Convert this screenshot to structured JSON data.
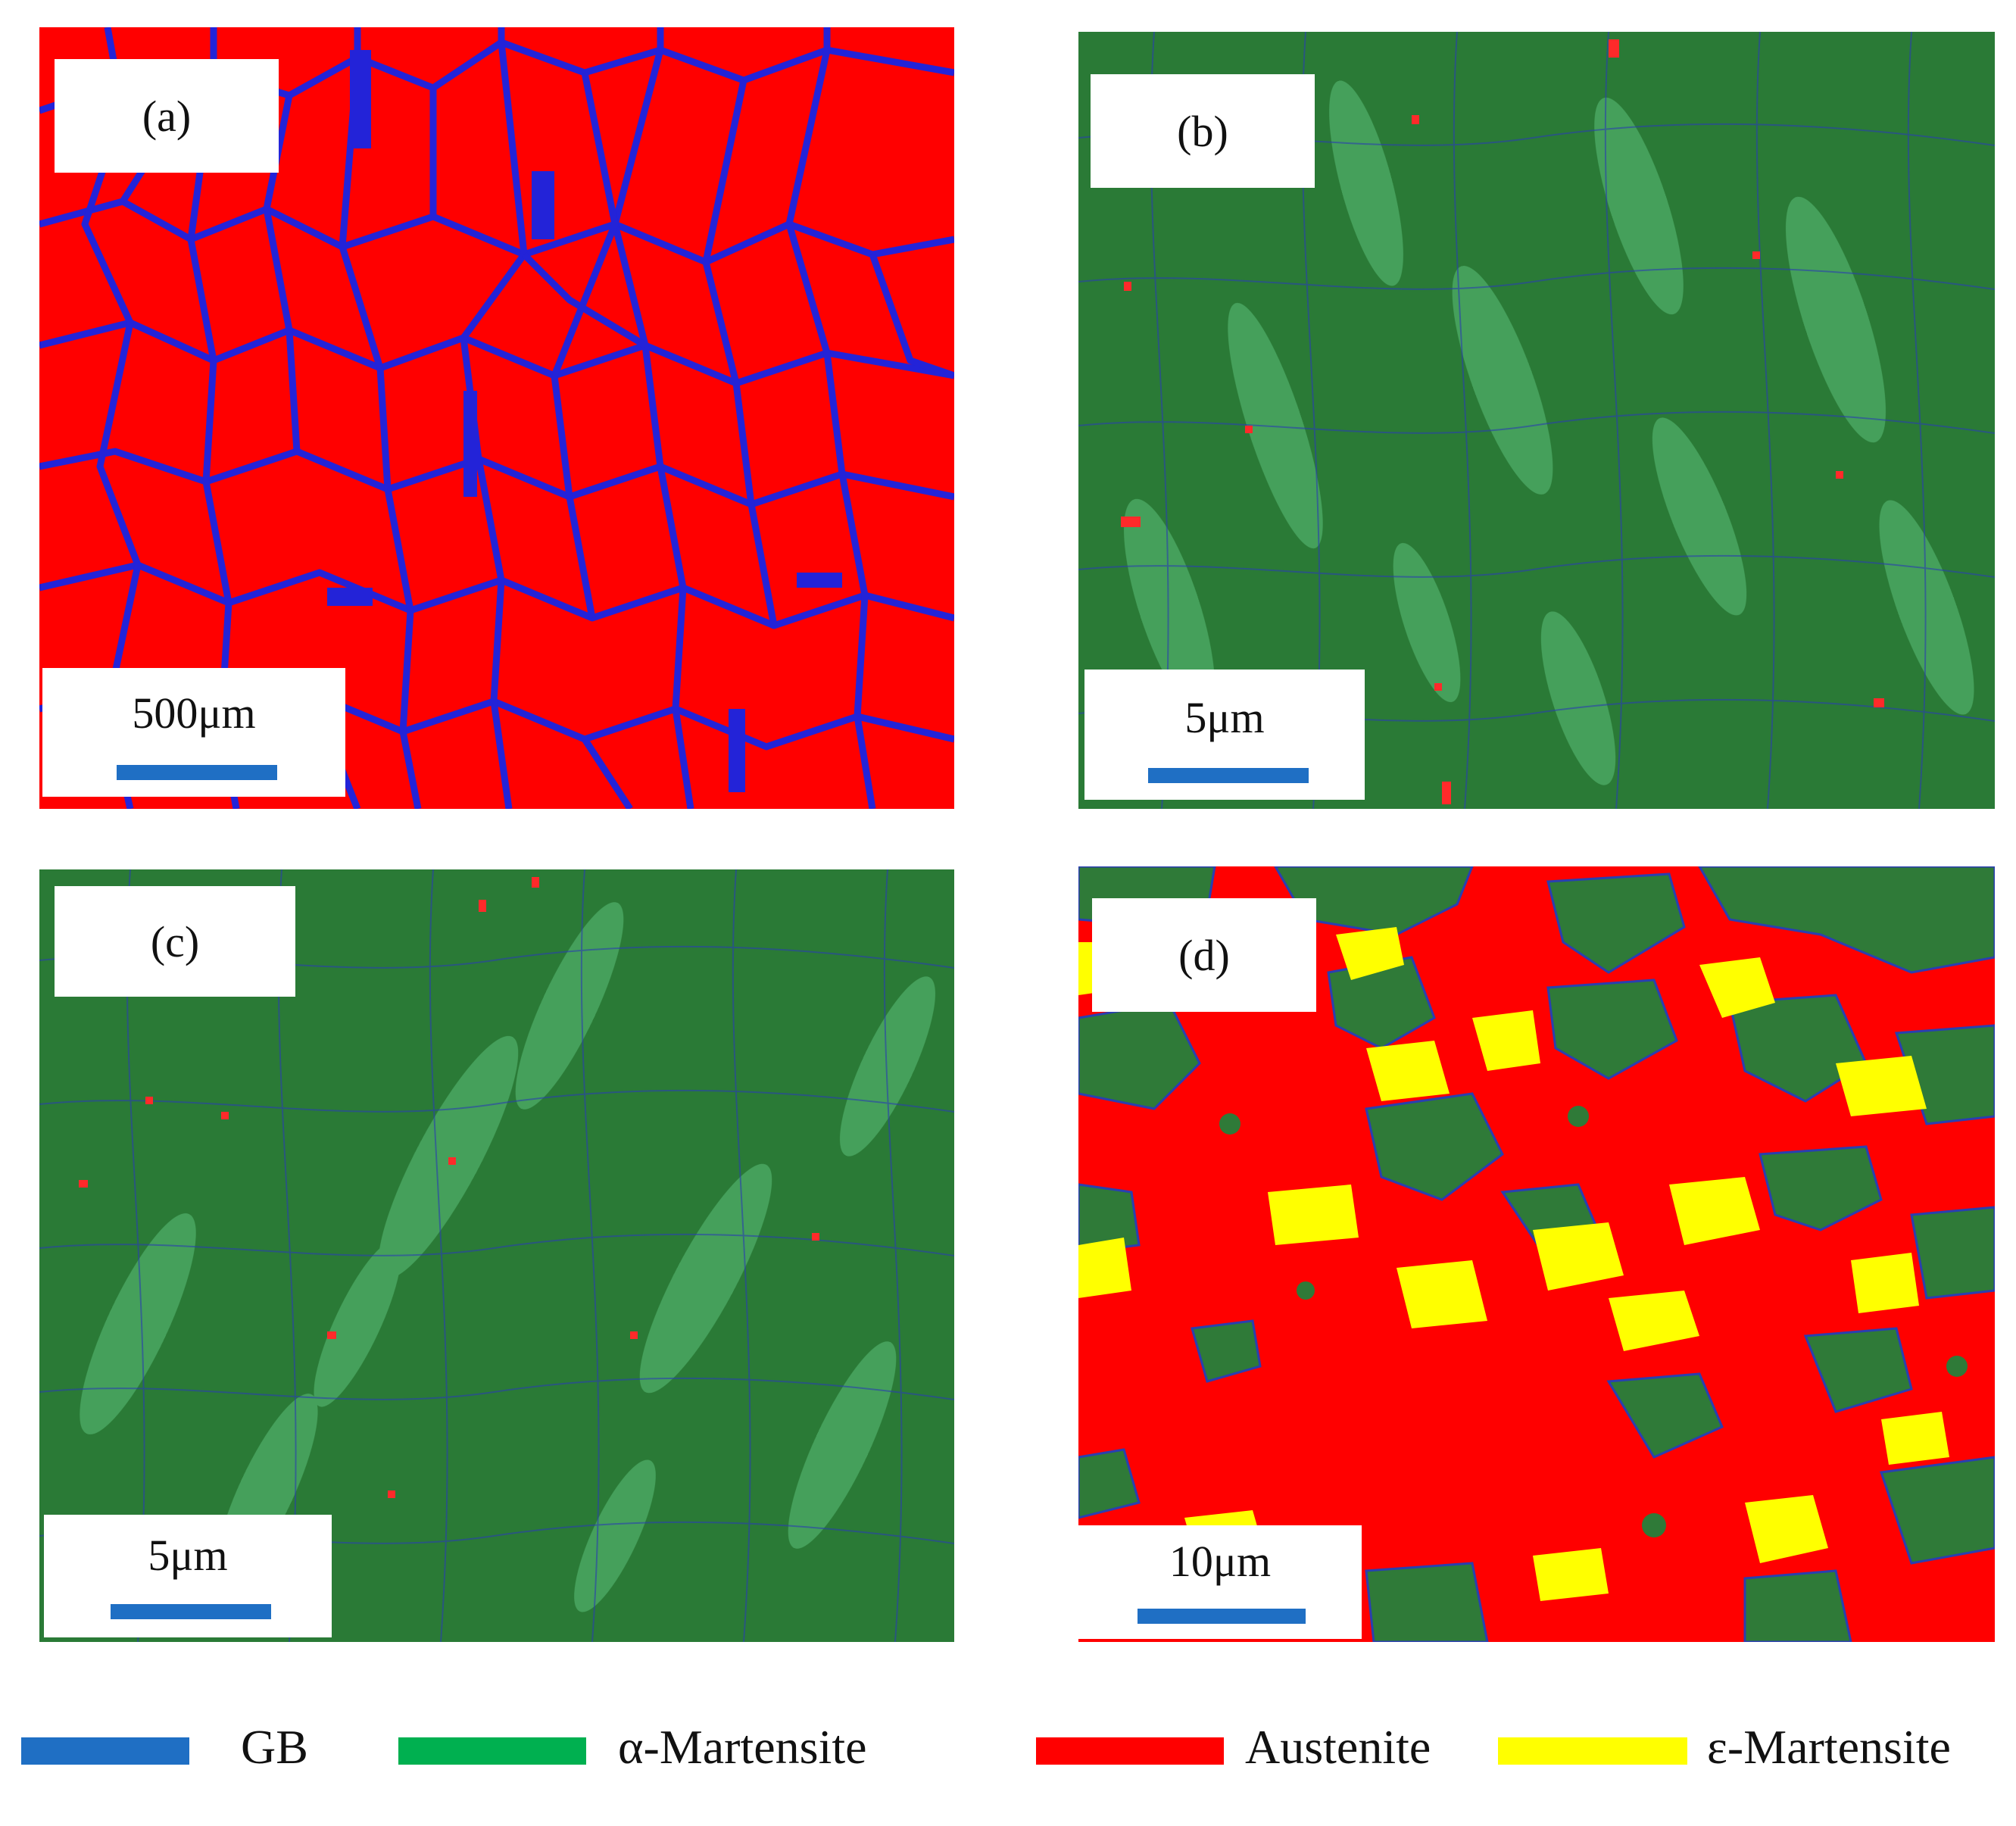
{
  "panels": [
    {
      "id": "a",
      "label": "(a)",
      "scale": "500μm",
      "phase": "austenite"
    },
    {
      "id": "b",
      "label": "(b)",
      "scale": "5μm",
      "phase": "alpha-martensite"
    },
    {
      "id": "c",
      "label": "(c)",
      "scale": "5μm",
      "phase": "alpha-martensite"
    },
    {
      "id": "d",
      "label": "(d)",
      "scale": "10μm",
      "phase": "mixed"
    }
  ],
  "legend": [
    {
      "label": "GB",
      "color": "#1f6fc4"
    },
    {
      "label": "α-Martensite",
      "color": "#00b050"
    },
    {
      "label": "Austenite",
      "color": "#ff0000"
    },
    {
      "label": "ε-Martensite",
      "color": "#ffff00"
    }
  ],
  "colors": {
    "austenite": "#ff0000",
    "grain_boundary": "#2323d8",
    "alpha_martensite_map": "#2a7a36",
    "epsilon_martensite": "#ffff00",
    "scale_bar": "#1f6fc4"
  }
}
